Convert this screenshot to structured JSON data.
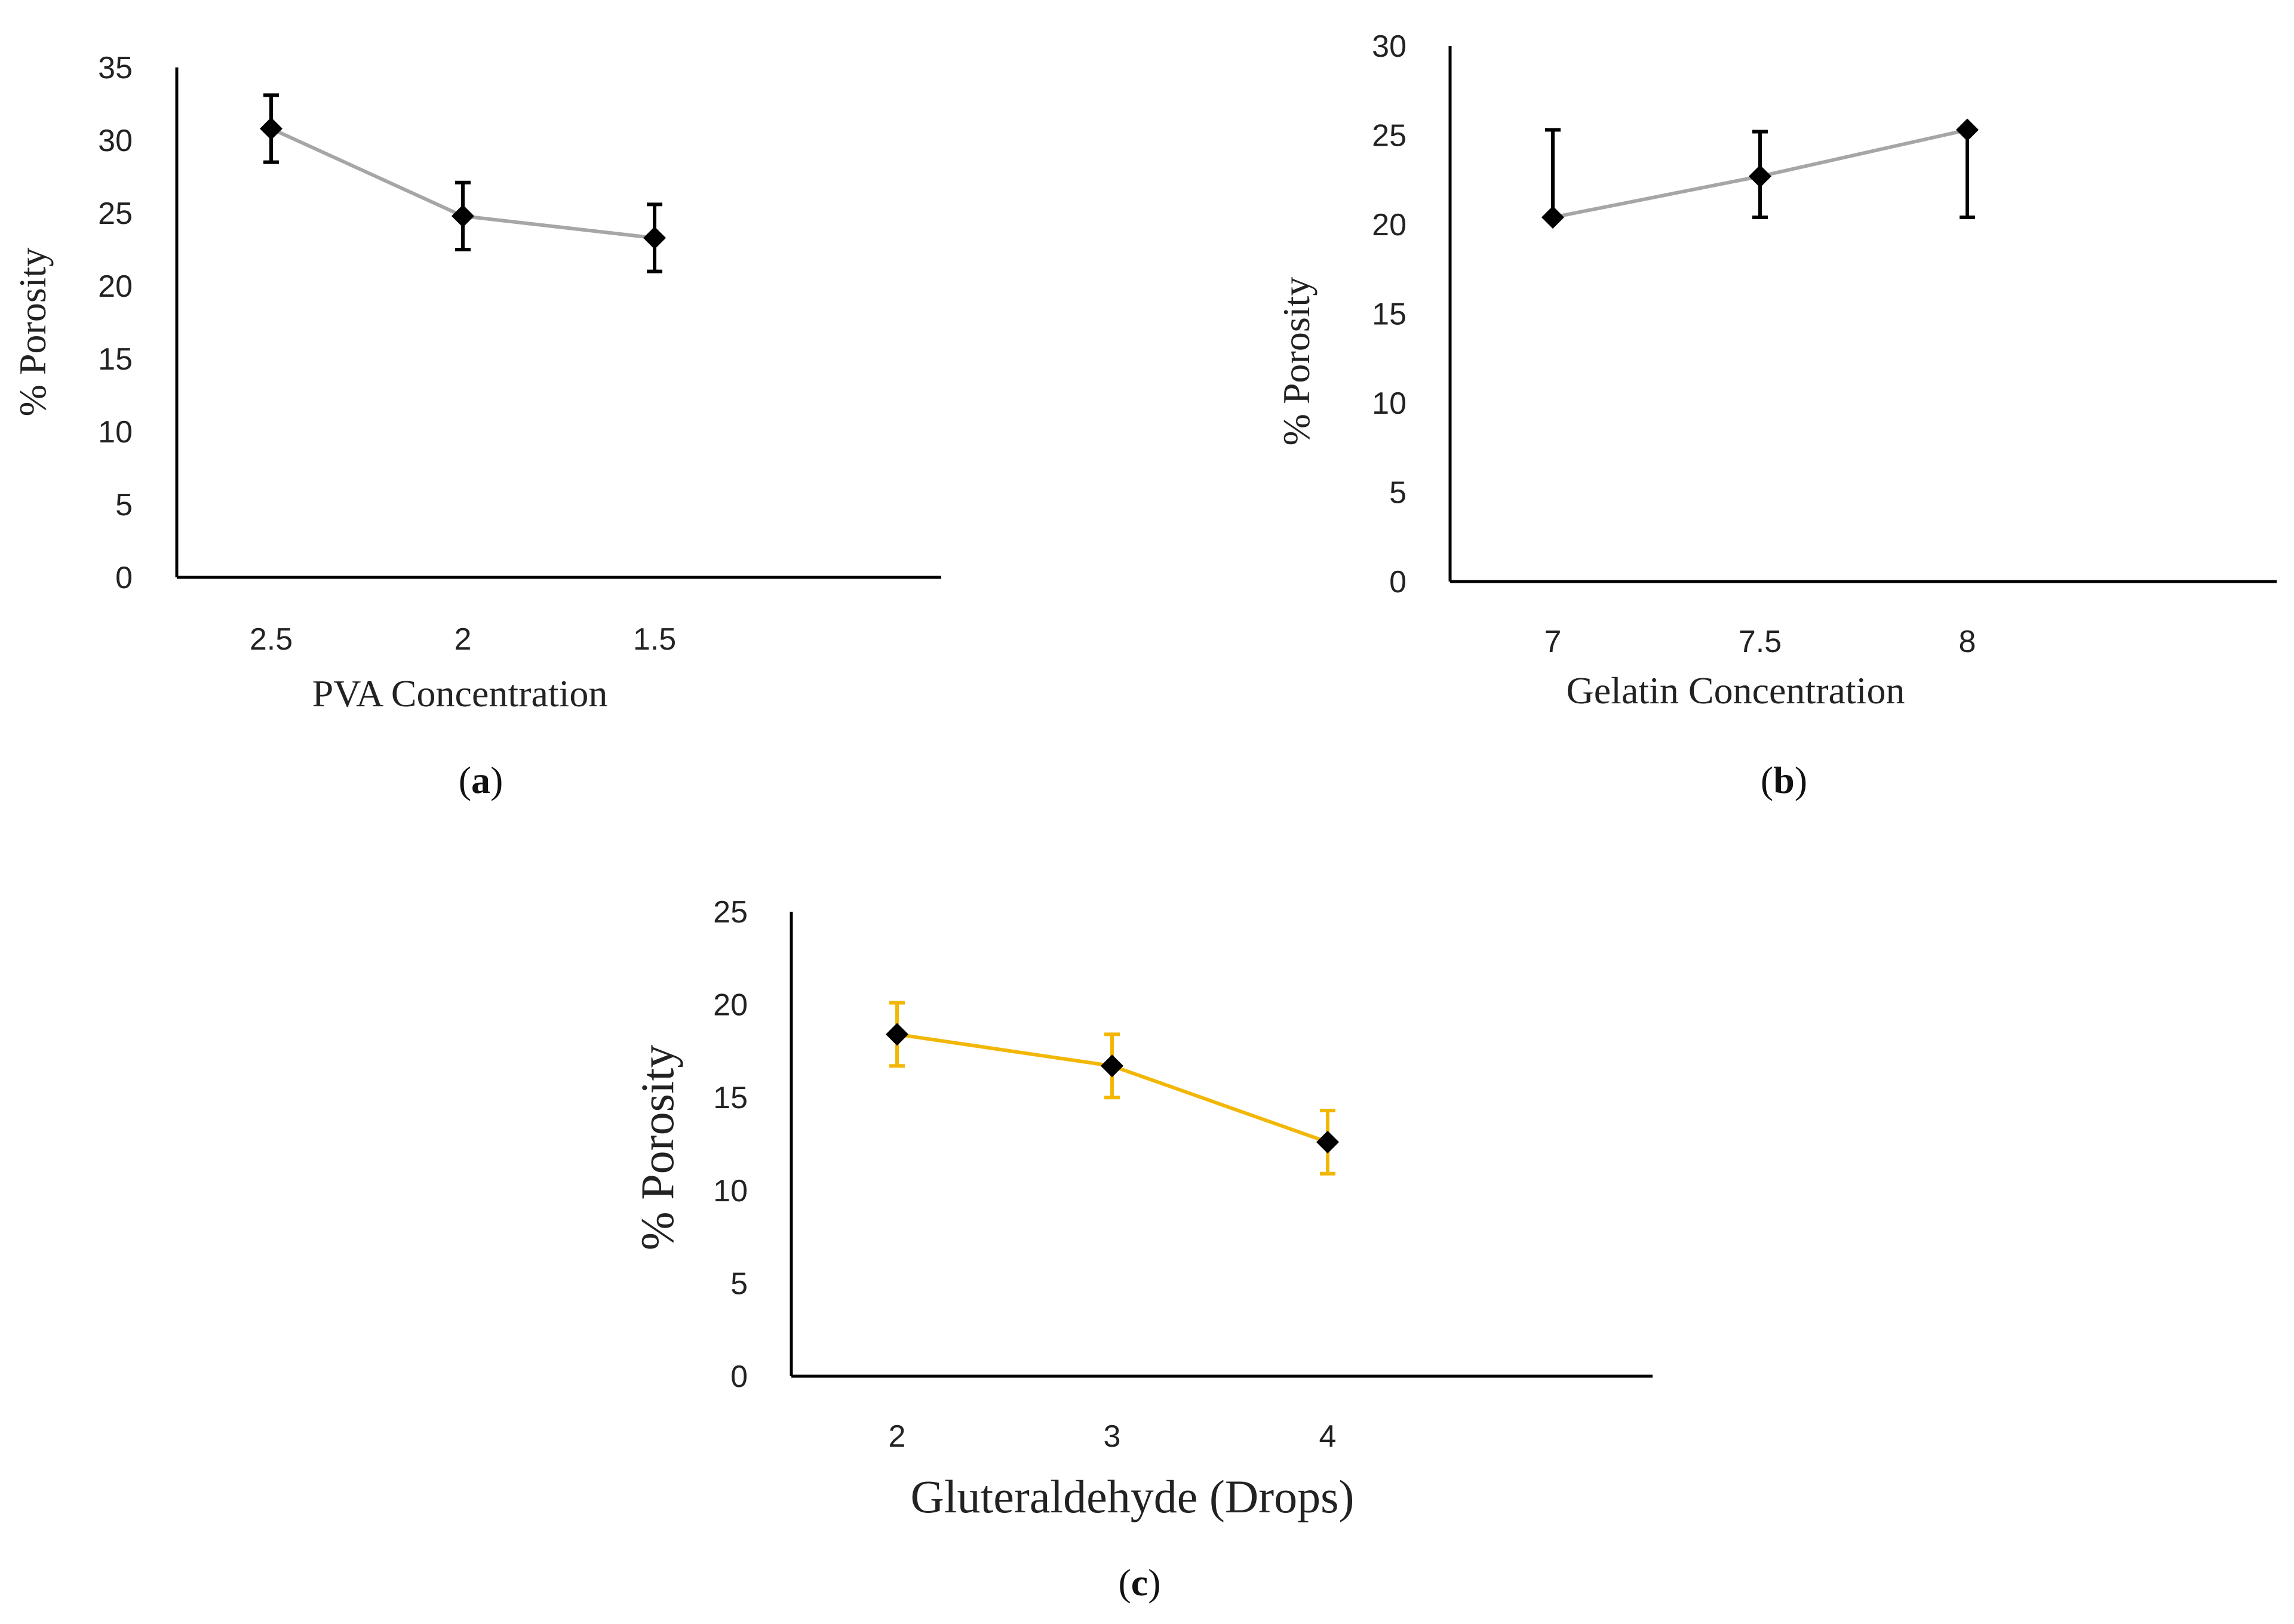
{
  "chart_data": [
    {
      "type": "line",
      "panel_label": "a",
      "xlabel": "PVA Concentration",
      "ylabel": "% Porosity",
      "categories": [
        "2.5",
        "2",
        "1.5"
      ],
      "series": [
        {
          "name": "Porosity",
          "values": [
            30.8,
            24.8,
            23.3
          ],
          "errors": [
            2.3,
            2.3,
            2.3
          ],
          "color": "#a6a6a6",
          "error_color": "#000000"
        }
      ],
      "ylim": [
        0,
        35
      ],
      "yticks": [
        "0",
        "5",
        "10",
        "15",
        "20",
        "25",
        "30",
        "35"
      ],
      "grid": false
    },
    {
      "type": "line",
      "panel_label": "b",
      "xlabel": "Gelatin Concentration",
      "ylabel": "% Porosity",
      "categories": [
        "7",
        "7.5",
        "8"
      ],
      "series": [
        {
          "name": "Porosity",
          "values": [
            20.4,
            22.7,
            25.3
          ],
          "errors_low": [
            0,
            2.3,
            4.9
          ],
          "errors_high": [
            4.9,
            2.5,
            0
          ],
          "color": "#a6a6a6",
          "error_color": "#000000"
        }
      ],
      "ylim": [
        0,
        30
      ],
      "yticks": [
        "0",
        "5",
        "10",
        "15",
        "20",
        "25",
        "30"
      ],
      "grid": false
    },
    {
      "type": "line",
      "panel_label": "c",
      "xlabel": "Gluteraldehyde (Drops)",
      "ylabel": "% Porosity",
      "categories": [
        "2",
        "3",
        "4"
      ],
      "series": [
        {
          "name": "Porosity",
          "values": [
            18.4,
            16.7,
            12.6
          ],
          "errors": [
            1.7,
            1.7,
            1.7
          ],
          "color": "#f2b705",
          "error_color": "#f2b705"
        }
      ],
      "ylim": [
        0,
        25
      ],
      "yticks": [
        "0",
        "5",
        "10",
        "15",
        "20",
        "25"
      ],
      "grid": false
    }
  ]
}
